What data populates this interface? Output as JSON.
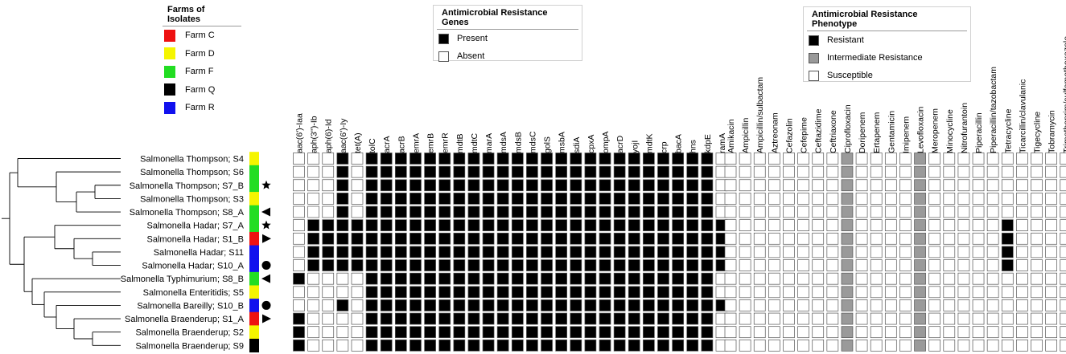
{
  "legends": {
    "farms": {
      "title": "Farms of Isolates",
      "items": [
        {
          "label": "Farm C",
          "color": "#ee1111"
        },
        {
          "label": "Farm D",
          "color": "#f5f500"
        },
        {
          "label": "Farm F",
          "color": "#22dd22"
        },
        {
          "label": "Farm Q",
          "color": "#000000"
        },
        {
          "label": "Farm R",
          "color": "#1111ee"
        }
      ]
    },
    "genes": {
      "title": "Antimicrobial Resistance Genes",
      "items": [
        {
          "label": "Present",
          "color": "#000000"
        },
        {
          "label": "Absent",
          "color": "#ffffff"
        }
      ]
    },
    "phenotype": {
      "title": "Antimicrobial Resistance Phenotype",
      "items": [
        {
          "label": "Resistant",
          "color": "#000000"
        },
        {
          "label": "Intermediate Resistance",
          "color": "#999999"
        },
        {
          "label": "Susceptible",
          "color": "#ffffff"
        }
      ]
    }
  },
  "marker_types": {
    "star": "★",
    "triangle-right": "▶",
    "triangle-left": "◀",
    "circle": "●"
  },
  "isolates": [
    {
      "label": "Salmonella Thompson; S4",
      "farm": "D",
      "marker": ""
    },
    {
      "label": "Salmonella Thompson; S6",
      "farm": "F",
      "marker": ""
    },
    {
      "label": "Salmonella Thompson; S7_B",
      "farm": "F",
      "marker": "star"
    },
    {
      "label": "Salmonella Thompson; S3",
      "farm": "D",
      "marker": ""
    },
    {
      "label": "Salmonella Thompson; S8_A",
      "farm": "F",
      "marker": "triangle-left"
    },
    {
      "label": "Salmonella Hadar; S7_A",
      "farm": "F",
      "marker": "star"
    },
    {
      "label": "Salmonella Hadar; S1_B",
      "farm": "C",
      "marker": "triangle-right"
    },
    {
      "label": "Salmonella Hadar; S11",
      "farm": "R",
      "marker": ""
    },
    {
      "label": "Salmonella Hadar; S10_A",
      "farm": "R",
      "marker": "circle"
    },
    {
      "label": "Salmonella Typhimurium; S8_B",
      "farm": "F",
      "marker": "triangle-left"
    },
    {
      "label": "Salmonella Enteritidis; S5",
      "farm": "D",
      "marker": ""
    },
    {
      "label": "Salmonella Bareilly; S10_B",
      "farm": "R",
      "marker": "circle"
    },
    {
      "label": "Salmonella Braenderup; S1_A",
      "farm": "C",
      "marker": "triangle-right"
    },
    {
      "label": "Salmonella Braenderup; S2",
      "farm": "D",
      "marker": ""
    },
    {
      "label": "Salmonella Braenderup; S9",
      "farm": "Q",
      "marker": ""
    }
  ],
  "genes": [
    "aac(6')-Iaa",
    "aph(3'')-Ib",
    "aph(6)-Id",
    "aac(6')-Iy",
    "tet(A)",
    "tolC",
    "acrA",
    "acrB",
    "emrA",
    "emrB",
    "emrR",
    "mdtB",
    "mdtC",
    "marA",
    "mdsA",
    "mdsB",
    "mdsC",
    "golS",
    "msbA",
    "sdiA",
    "cpxA",
    "ompA",
    "acrD",
    "yojI",
    "mdtK",
    "crp",
    "bacA",
    "hns",
    "kdpE",
    "ramA"
  ],
  "gene_matrix": [
    [
      0,
      0,
      0,
      1,
      0,
      1,
      1,
      1,
      1,
      1,
      1,
      1,
      1,
      1,
      1,
      1,
      1,
      1,
      1,
      1,
      1,
      1,
      1,
      1,
      1,
      1,
      1,
      1,
      1,
      0
    ],
    [
      0,
      0,
      0,
      1,
      0,
      1,
      1,
      1,
      1,
      1,
      1,
      1,
      1,
      1,
      1,
      1,
      1,
      1,
      1,
      1,
      1,
      1,
      1,
      1,
      1,
      1,
      1,
      1,
      1,
      0
    ],
    [
      0,
      0,
      0,
      1,
      0,
      1,
      1,
      1,
      1,
      1,
      1,
      1,
      1,
      1,
      1,
      1,
      1,
      1,
      1,
      1,
      1,
      1,
      1,
      1,
      1,
      1,
      1,
      1,
      1,
      0
    ],
    [
      0,
      0,
      0,
      1,
      0,
      1,
      1,
      1,
      1,
      1,
      1,
      1,
      1,
      1,
      1,
      1,
      1,
      1,
      1,
      1,
      1,
      1,
      1,
      1,
      1,
      1,
      1,
      1,
      1,
      0
    ],
    [
      0,
      0,
      0,
      1,
      0,
      1,
      1,
      1,
      1,
      1,
      1,
      1,
      1,
      1,
      1,
      1,
      1,
      1,
      1,
      1,
      1,
      1,
      1,
      1,
      1,
      1,
      1,
      1,
      1,
      0
    ],
    [
      0,
      1,
      1,
      1,
      1,
      1,
      1,
      1,
      1,
      1,
      1,
      1,
      1,
      1,
      1,
      1,
      1,
      1,
      1,
      1,
      1,
      1,
      1,
      1,
      1,
      1,
      1,
      1,
      1,
      1
    ],
    [
      0,
      1,
      1,
      1,
      1,
      1,
      1,
      1,
      1,
      1,
      1,
      1,
      1,
      1,
      1,
      1,
      1,
      1,
      1,
      1,
      1,
      1,
      1,
      1,
      1,
      1,
      1,
      1,
      1,
      1
    ],
    [
      0,
      1,
      1,
      1,
      1,
      1,
      1,
      1,
      1,
      1,
      1,
      1,
      1,
      1,
      1,
      1,
      1,
      1,
      1,
      1,
      1,
      1,
      1,
      1,
      1,
      1,
      1,
      1,
      1,
      1
    ],
    [
      0,
      1,
      1,
      1,
      1,
      1,
      1,
      1,
      1,
      1,
      1,
      1,
      1,
      1,
      1,
      1,
      1,
      1,
      1,
      1,
      1,
      1,
      1,
      1,
      1,
      1,
      1,
      1,
      1,
      1
    ],
    [
      1,
      0,
      0,
      0,
      0,
      1,
      1,
      1,
      1,
      1,
      1,
      1,
      1,
      1,
      1,
      1,
      1,
      1,
      1,
      1,
      1,
      1,
      1,
      1,
      1,
      1,
      1,
      1,
      1,
      0
    ],
    [
      0,
      0,
      0,
      0,
      0,
      1,
      1,
      1,
      1,
      1,
      1,
      1,
      1,
      1,
      1,
      1,
      1,
      1,
      1,
      1,
      1,
      1,
      1,
      1,
      1,
      1,
      1,
      1,
      1,
      0
    ],
    [
      0,
      0,
      0,
      1,
      0,
      1,
      1,
      1,
      1,
      1,
      1,
      1,
      1,
      1,
      1,
      1,
      1,
      1,
      1,
      1,
      1,
      1,
      1,
      1,
      1,
      1,
      1,
      1,
      1,
      1
    ],
    [
      1,
      0,
      0,
      0,
      0,
      1,
      1,
      1,
      1,
      1,
      1,
      1,
      1,
      1,
      1,
      1,
      1,
      1,
      1,
      1,
      1,
      1,
      1,
      1,
      1,
      1,
      1,
      1,
      1,
      0
    ],
    [
      1,
      0,
      0,
      0,
      0,
      1,
      1,
      1,
      1,
      1,
      1,
      1,
      1,
      1,
      1,
      1,
      1,
      1,
      1,
      1,
      1,
      1,
      1,
      1,
      1,
      1,
      1,
      1,
      1,
      0
    ],
    [
      1,
      0,
      0,
      0,
      0,
      1,
      1,
      1,
      1,
      1,
      1,
      1,
      1,
      1,
      1,
      1,
      1,
      1,
      1,
      1,
      1,
      1,
      1,
      1,
      1,
      1,
      1,
      1,
      1,
      0
    ]
  ],
  "drugs": [
    "Amikacin",
    "Ampicillin",
    "Ampicillin/sulbactam",
    "Aztreonam",
    "Cefazolin",
    "Cefepime",
    "Ceftazidime",
    "Ceftriaxone",
    "Ciprofloxacin",
    "Doripenem",
    "Ertapenem",
    "Gentamicin",
    "Imipenem",
    "Levofloxacin",
    "Meropenem",
    "Minocycline",
    "Nitrofurantoin",
    "Piperacillin",
    "Piperacillin/tazobactam",
    "Tetracycline",
    "Ticarcillin/clavulanic",
    "Tigecycline",
    "Tobramycin",
    "Trimethoprim/sulfamethoxazole"
  ],
  "pheno_matrix": [
    [
      0,
      0,
      0,
      0,
      0,
      0,
      0,
      0,
      1,
      0,
      0,
      0,
      0,
      1,
      0,
      0,
      0,
      0,
      0,
      0,
      0,
      0,
      0,
      0
    ],
    [
      0,
      0,
      0,
      0,
      0,
      0,
      0,
      0,
      1,
      0,
      0,
      0,
      0,
      1,
      0,
      0,
      0,
      0,
      0,
      0,
      0,
      0,
      0,
      0
    ],
    [
      0,
      0,
      0,
      0,
      0,
      0,
      0,
      0,
      1,
      0,
      0,
      0,
      0,
      1,
      0,
      0,
      0,
      0,
      0,
      0,
      0,
      0,
      0,
      0
    ],
    [
      0,
      0,
      0,
      0,
      0,
      0,
      0,
      0,
      1,
      0,
      0,
      0,
      0,
      1,
      0,
      0,
      0,
      0,
      0,
      0,
      0,
      0,
      0,
      0
    ],
    [
      0,
      0,
      0,
      0,
      0,
      0,
      0,
      0,
      1,
      0,
      0,
      0,
      0,
      1,
      0,
      0,
      0,
      0,
      0,
      0,
      0,
      0,
      0,
      0
    ],
    [
      0,
      0,
      0,
      0,
      0,
      0,
      0,
      0,
      1,
      0,
      0,
      0,
      0,
      1,
      0,
      0,
      0,
      0,
      0,
      2,
      0,
      0,
      0,
      0
    ],
    [
      0,
      0,
      0,
      0,
      0,
      0,
      0,
      0,
      1,
      0,
      0,
      0,
      0,
      1,
      0,
      0,
      0,
      0,
      0,
      2,
      0,
      0,
      0,
      0
    ],
    [
      0,
      0,
      0,
      0,
      0,
      0,
      0,
      0,
      1,
      0,
      0,
      0,
      0,
      1,
      0,
      0,
      0,
      0,
      0,
      2,
      0,
      0,
      0,
      0
    ],
    [
      0,
      0,
      0,
      0,
      0,
      0,
      0,
      0,
      1,
      0,
      0,
      0,
      0,
      1,
      0,
      0,
      0,
      0,
      0,
      2,
      0,
      0,
      0,
      0
    ],
    [
      0,
      0,
      0,
      0,
      0,
      0,
      0,
      0,
      1,
      0,
      0,
      0,
      0,
      1,
      0,
      0,
      0,
      0,
      0,
      0,
      0,
      0,
      0,
      0
    ],
    [
      0,
      0,
      0,
      0,
      0,
      0,
      0,
      0,
      1,
      0,
      0,
      0,
      0,
      1,
      0,
      0,
      0,
      0,
      0,
      0,
      0,
      0,
      0,
      0
    ],
    [
      0,
      0,
      0,
      0,
      0,
      0,
      0,
      0,
      1,
      0,
      0,
      0,
      0,
      1,
      0,
      0,
      0,
      0,
      0,
      0,
      0,
      0,
      0,
      0
    ],
    [
      0,
      0,
      0,
      0,
      0,
      0,
      0,
      0,
      1,
      0,
      0,
      0,
      0,
      1,
      0,
      0,
      0,
      0,
      0,
      0,
      0,
      0,
      0,
      0
    ],
    [
      0,
      0,
      0,
      0,
      0,
      0,
      0,
      0,
      1,
      0,
      0,
      0,
      0,
      1,
      0,
      0,
      0,
      0,
      0,
      0,
      0,
      0,
      0,
      0
    ],
    [
      0,
      0,
      0,
      0,
      0,
      0,
      0,
      0,
      1,
      0,
      0,
      0,
      0,
      1,
      0,
      0,
      0,
      0,
      0,
      0,
      0,
      0,
      0,
      0
    ]
  ]
}
